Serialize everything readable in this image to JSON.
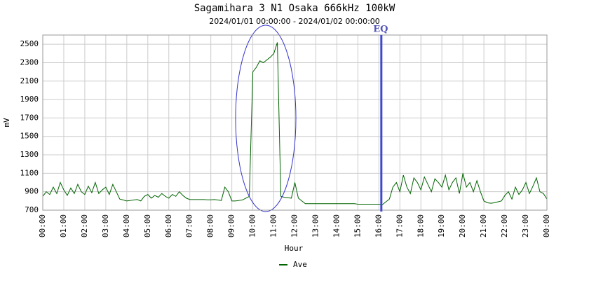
{
  "chart_data": {
    "type": "line",
    "title": "Sagamihara 3 N1 Osaka 666kHz 100kW",
    "subtitle": "2024/01/01 00:00:00 - 2024/01/02 00:00:00",
    "x_label": "Hour",
    "y_label": "mV",
    "x": [
      0,
      10,
      20,
      30,
      40,
      50,
      60,
      70,
      80,
      90,
      100,
      110,
      120,
      130,
      140,
      150,
      160,
      170,
      180,
      190,
      200,
      210,
      220,
      230,
      240,
      250,
      260,
      270,
      280,
      290,
      300,
      310,
      320,
      330,
      340,
      350,
      360,
      370,
      380,
      390,
      400,
      410,
      420,
      430,
      440,
      450,
      460,
      470,
      480,
      490,
      500,
      510,
      520,
      530,
      540,
      550,
      560,
      570,
      580,
      590,
      600,
      610,
      620,
      630,
      640,
      650,
      660,
      670,
      680,
      690,
      700,
      710,
      720,
      730,
      740,
      750,
      760,
      770,
      780,
      790,
      800,
      810,
      820,
      830,
      840,
      850,
      860,
      870,
      880,
      890,
      900,
      910,
      920,
      930,
      940,
      950,
      960,
      970,
      980,
      990,
      1000,
      1010,
      1020,
      1030,
      1040,
      1050,
      1060,
      1070,
      1080,
      1090,
      1100,
      1110,
      1120,
      1130,
      1140,
      1150,
      1160,
      1170,
      1180,
      1190,
      1200,
      1210,
      1220,
      1230,
      1240,
      1250,
      1260,
      1270,
      1280,
      1290,
      1300,
      1310,
      1320,
      1330,
      1340,
      1350,
      1360,
      1370,
      1380,
      1390,
      1400,
      1410,
      1420,
      1430,
      1440
    ],
    "series": [
      {
        "name": "Ave",
        "color": "#006400",
        "values": [
          850,
          900,
          870,
          950,
          880,
          1000,
          920,
          860,
          940,
          880,
          980,
          900,
          870,
          960,
          890,
          1000,
          880,
          920,
          950,
          870,
          980,
          900,
          820,
          810,
          800,
          805,
          810,
          815,
          800,
          850,
          870,
          830,
          860,
          840,
          880,
          850,
          830,
          870,
          850,
          900,
          860,
          830,
          815,
          815,
          815,
          815,
          815,
          812,
          812,
          815,
          810,
          805,
          950,
          900,
          800,
          800,
          805,
          810,
          830,
          850,
          2200,
          2250,
          2320,
          2300,
          2330,
          2360,
          2400,
          2520,
          850,
          840,
          835,
          830,
          1000,
          830,
          800,
          770,
          770,
          770,
          770,
          770,
          770,
          770,
          770,
          770,
          770,
          770,
          770,
          770,
          770,
          770,
          765,
          765,
          765,
          765,
          765,
          765,
          765,
          760,
          790,
          820,
          950,
          1000,
          900,
          1080,
          950,
          880,
          1050,
          1000,
          920,
          1060,
          980,
          900,
          1040,
          1000,
          950,
          1080,
          920,
          1000,
          1050,
          880,
          1100,
          950,
          1000,
          900,
          1020,
          900,
          800,
          780,
          775,
          780,
          790,
          800,
          860,
          900,
          820,
          950,
          870,
          920,
          1000,
          880,
          960,
          1050,
          900,
          880,
          820
        ]
      }
    ],
    "xlim": [
      0,
      1440
    ],
    "xticks": [
      {
        "value": 0,
        "label": "00:00"
      },
      {
        "value": 60,
        "label": "01:00"
      },
      {
        "value": 120,
        "label": "02:00"
      },
      {
        "value": 180,
        "label": "03:00"
      },
      {
        "value": 240,
        "label": "04:00"
      },
      {
        "value": 300,
        "label": "05:00"
      },
      {
        "value": 360,
        "label": "06:00"
      },
      {
        "value": 420,
        "label": "07:00"
      },
      {
        "value": 480,
        "label": "08:00"
      },
      {
        "value": 540,
        "label": "09:00"
      },
      {
        "value": 600,
        "label": "10:00"
      },
      {
        "value": 660,
        "label": "11:00"
      },
      {
        "value": 720,
        "label": "12:00"
      },
      {
        "value": 780,
        "label": "13:00"
      },
      {
        "value": 840,
        "label": "14:00"
      },
      {
        "value": 900,
        "label": "15:00"
      },
      {
        "value": 960,
        "label": "16:00"
      },
      {
        "value": 1020,
        "label": "17:00"
      },
      {
        "value": 1080,
        "label": "18:00"
      },
      {
        "value": 1140,
        "label": "19:00"
      },
      {
        "value": 1200,
        "label": "20:00"
      },
      {
        "value": 1260,
        "label": "21:00"
      },
      {
        "value": 1320,
        "label": "22:00"
      },
      {
        "value": 1380,
        "label": "23:00"
      },
      {
        "value": 1440,
        "label": "00:00"
      }
    ],
    "ylim": [
      700,
      2600
    ],
    "yticks": [
      700,
      900,
      1100,
      1300,
      1500,
      1700,
      1900,
      2100,
      2300,
      2500
    ],
    "grid": true,
    "eq_label": "EQ",
    "eq_x": 967
  }
}
